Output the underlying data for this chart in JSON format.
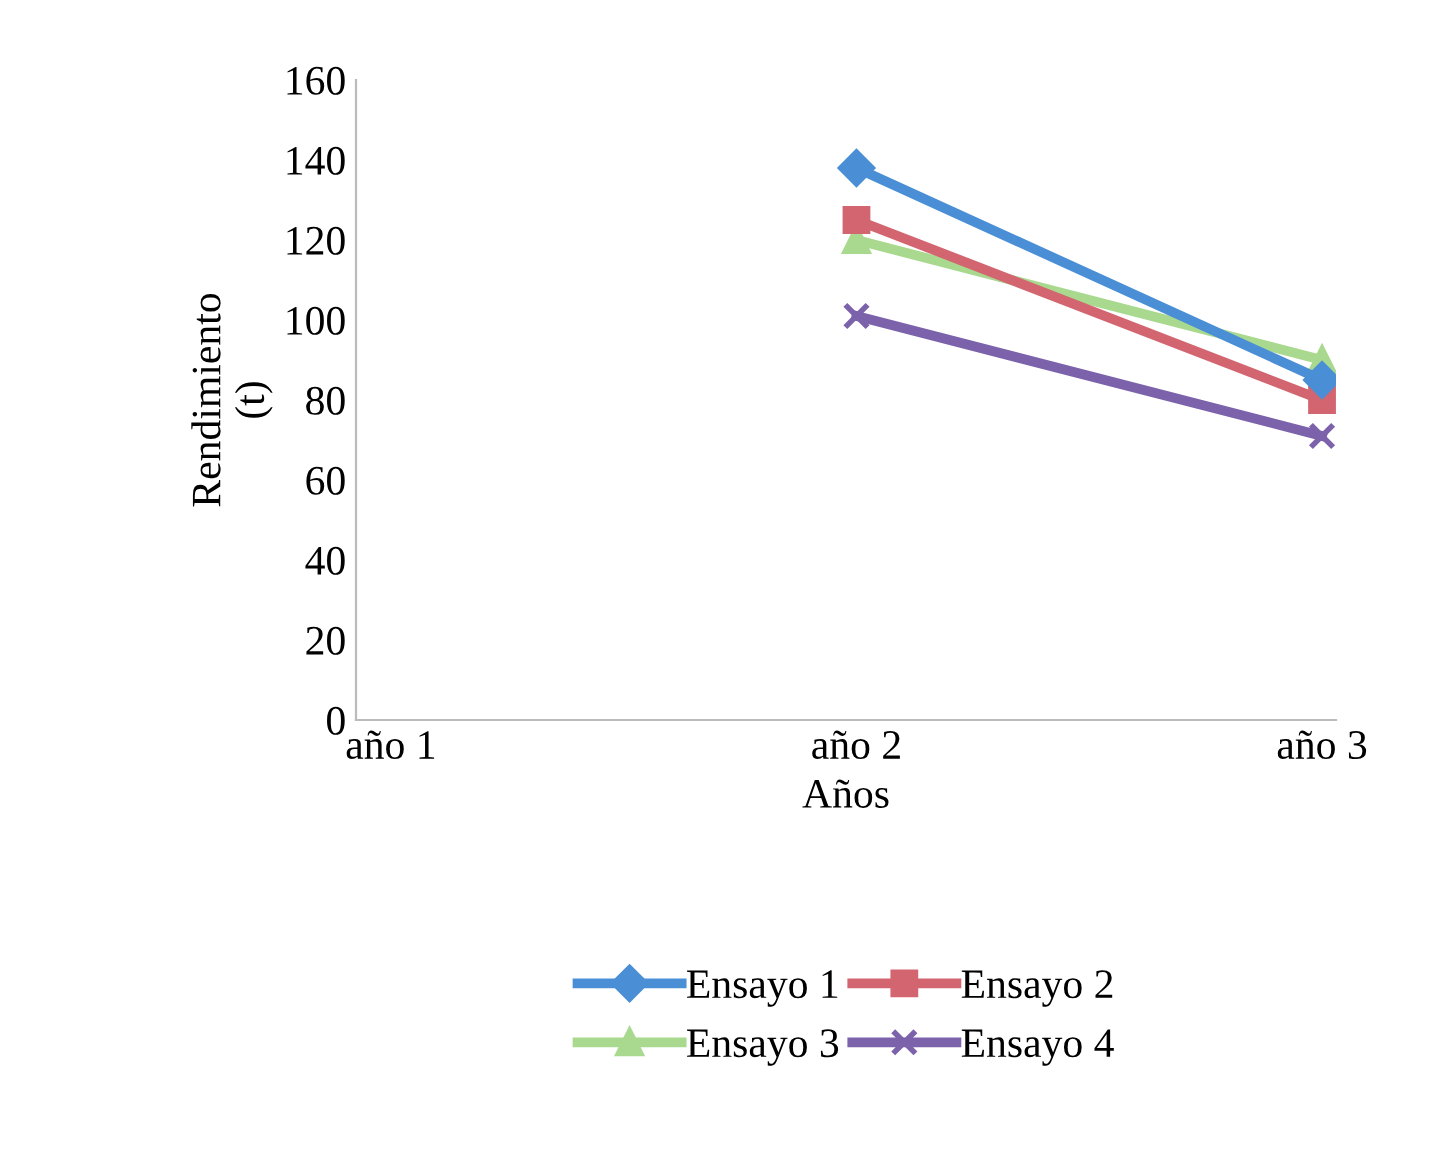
{
  "chart_data": {
    "type": "line",
    "xlabel": "Años",
    "ylabel": "Rendimiento\n(t)",
    "categories": [
      "año 1",
      "año 2",
      "año 3"
    ],
    "ylim": [
      0,
      160
    ],
    "yticks": [
      0,
      20,
      40,
      60,
      80,
      100,
      120,
      140,
      160
    ],
    "grid": false,
    "legend": "bottom",
    "series": [
      {
        "name": "Ensayo 1",
        "color": "#4a8fd6",
        "marker": "diamond",
        "values": [
          null,
          138,
          85
        ]
      },
      {
        "name": "Ensayo 2",
        "color": "#d2656f",
        "marker": "square",
        "values": [
          null,
          125,
          80
        ]
      },
      {
        "name": "Ensayo 3",
        "color": "#a9d98e",
        "marker": "triangle",
        "values": [
          null,
          120,
          90
        ]
      },
      {
        "name": "Ensayo 4",
        "color": "#7b62ab",
        "marker": "cross",
        "values": [
          null,
          101,
          71
        ]
      }
    ]
  }
}
